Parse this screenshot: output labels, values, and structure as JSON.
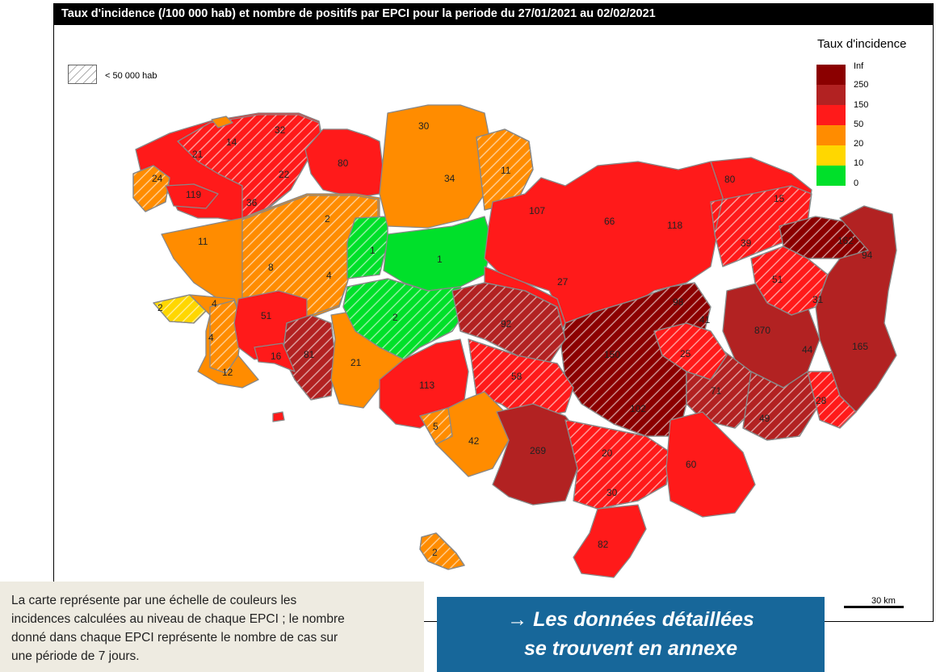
{
  "title": "Taux d'incidence (/100 000 hab) et nombre de positifs par EPCI pour la periode du 27/01/2021 au 02/02/2021",
  "hatch_legend": {
    "label": "< 50 000 hab"
  },
  "legend": {
    "title": "Taux d'incidence",
    "classes": [
      {
        "label": "Inf",
        "color": "#8b0000"
      },
      {
        "label": "250",
        "color": "#b22222"
      },
      {
        "label": "150",
        "color": "#ff1a1a"
      },
      {
        "label": "50",
        "color": "#ff8c00"
      },
      {
        "label": "20",
        "color": "#ffd700"
      },
      {
        "label": "10",
        "color": "#00e02a"
      },
      {
        "label": "0",
        "color": null
      }
    ]
  },
  "scale": {
    "label": "30 km"
  },
  "epci_counts": [
    "32",
    "14",
    "21",
    "24",
    "119",
    "22",
    "36",
    "80",
    "30",
    "34",
    "11",
    "11",
    "2",
    "8",
    "1",
    "1",
    "4",
    "107",
    "66",
    "118",
    "80",
    "15",
    "39",
    "162",
    "94",
    "2",
    "4",
    "51",
    "27",
    "51",
    "31",
    "98",
    "41",
    "870",
    "44",
    "165",
    "4",
    "12",
    "16",
    "81",
    "21",
    "2",
    "92",
    "150",
    "25",
    "113",
    "58",
    "5",
    "42",
    "269",
    "102",
    "71",
    "28",
    "49",
    "20",
    "60",
    "30",
    "82",
    "2"
  ],
  "note": {
    "lines": [
      "La carte représente par une échelle de couleurs les",
      "incidences calculées au niveau de chaque EPCI ; le nombre",
      "donné dans chaque EPCI représente le nombre de cas sur",
      "une période de 7 jours."
    ]
  },
  "cta": {
    "line1": "→ Les données détaillées",
    "line2": "se trouvent en annexe"
  }
}
